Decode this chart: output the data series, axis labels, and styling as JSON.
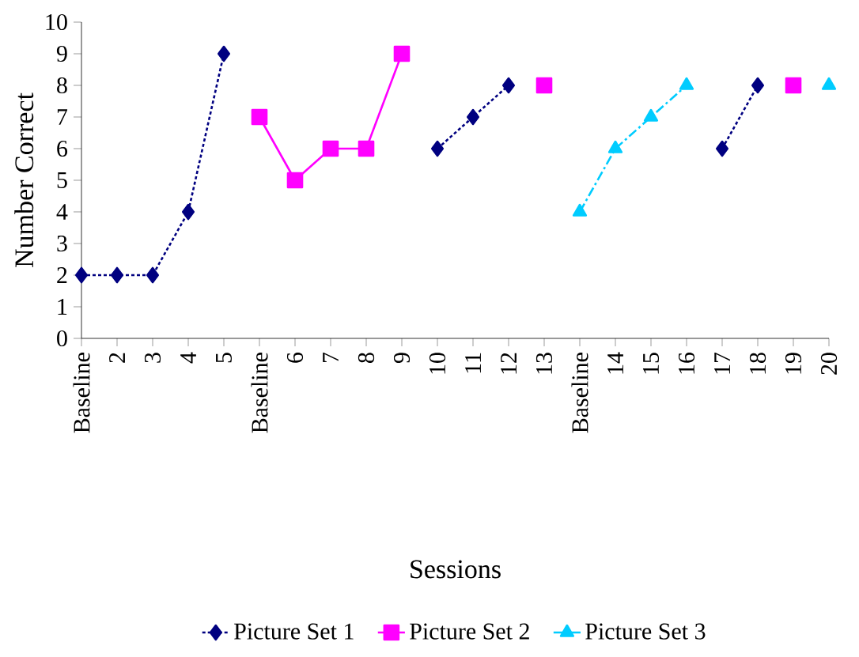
{
  "chart_data": {
    "type": "line",
    "xlabel": "Sessions",
    "ylabel": "Number Correct",
    "categories": [
      "Baseline",
      "2",
      "3",
      "4",
      "5",
      "Baseline",
      "6",
      "7",
      "8",
      "9",
      "10",
      "11",
      "12",
      "13",
      "Baseline",
      "14",
      "15",
      "16",
      "17",
      "18",
      "19",
      "20"
    ],
    "series": [
      {
        "name": "Picture Set 1",
        "color": "#000080",
        "marker": "diamond",
        "line_style": "dotted",
        "values": [
          2,
          2,
          2,
          4,
          9,
          null,
          null,
          null,
          null,
          null,
          6,
          7,
          8,
          null,
          null,
          null,
          null,
          null,
          6,
          8,
          null,
          null
        ]
      },
      {
        "name": "Picture Set 2",
        "color": "#ff00ff",
        "marker": "square",
        "line_style": "solid",
        "values": [
          null,
          null,
          null,
          null,
          null,
          7,
          5,
          6,
          6,
          9,
          null,
          null,
          null,
          8,
          null,
          null,
          null,
          null,
          null,
          null,
          8,
          null
        ]
      },
      {
        "name": "Picture Set 3",
        "color": "#00ccff",
        "marker": "triangle",
        "line_style": "dashed",
        "values": [
          null,
          null,
          null,
          null,
          null,
          null,
          null,
          null,
          null,
          null,
          null,
          null,
          null,
          null,
          4,
          6,
          7,
          8,
          null,
          null,
          null,
          8
        ]
      }
    ],
    "ylim": [
      0,
      10
    ],
    "yticks": [
      0,
      1,
      2,
      3,
      4,
      5,
      6,
      7,
      8,
      9,
      10
    ],
    "grid": false,
    "legend": "bottom"
  }
}
